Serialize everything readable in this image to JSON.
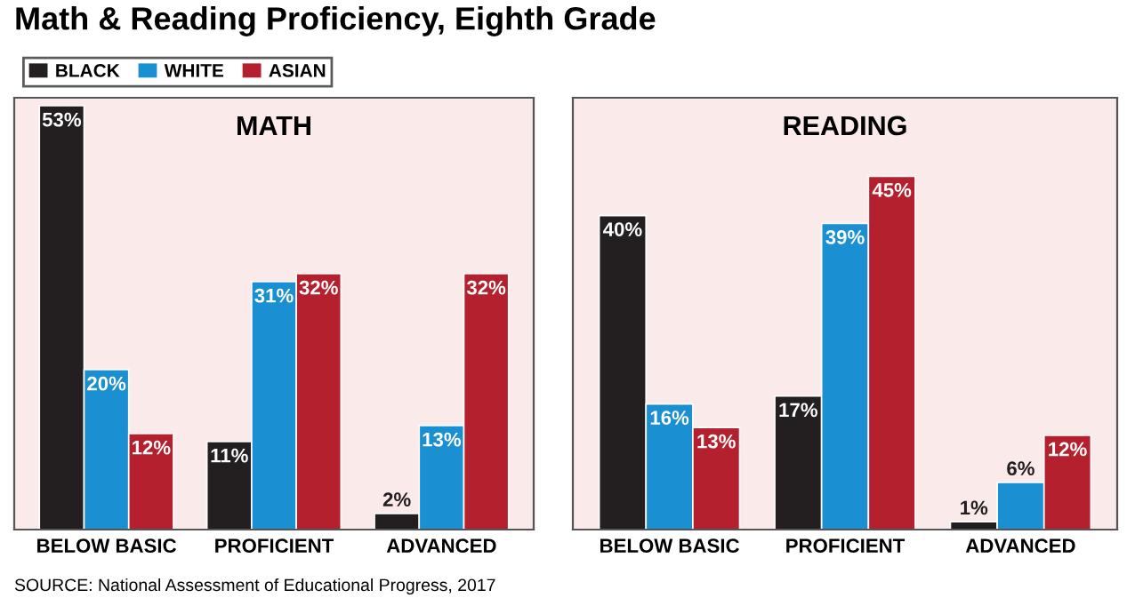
{
  "chart_data": [
    {
      "type": "bar",
      "title": "MATH",
      "subtitle": "Math & Reading Proficiency, Eighth Grade",
      "categories": [
        "BELOW BASIC",
        "PROFICIENT",
        "ADVANCED"
      ],
      "ylim": [
        0,
        54
      ],
      "legend": "top left",
      "grid": false,
      "tick_labels": "x",
      "series": [
        {
          "name": "BLACK",
          "color": "#231f20",
          "values": [
            53,
            11,
            2
          ],
          "value_labels": [
            "53%",
            "11%",
            "2%"
          ]
        },
        {
          "name": "WHITE",
          "color": "#1a8fd1",
          "values": [
            20,
            31,
            13
          ],
          "value_labels": [
            "20%",
            "31%",
            "13%"
          ]
        },
        {
          "name": "ASIAN",
          "color": "#b5202e",
          "values": [
            12,
            32,
            32
          ],
          "value_labels": [
            "12%",
            "32%",
            "32%"
          ]
        }
      ],
      "annotations": [
        "SOURCE: National Assessment of Educational Progress, 2017"
      ]
    },
    {
      "type": "bar",
      "title": "READING",
      "categories": [
        "BELOW BASIC",
        "PROFICIENT",
        "ADVANCED"
      ],
      "ylim": [
        0,
        55
      ],
      "legend": false,
      "grid": false,
      "tick_labels": "x",
      "series": [
        {
          "color": "#231f20",
          "values": [
            40,
            17,
            1
          ],
          "value_labels": [
            "40%",
            "17%",
            "1%"
          ]
        },
        {
          "color": "#1a8fd1",
          "values": [
            16,
            39,
            6
          ],
          "value_labels": [
            "16%",
            "39%",
            "6%"
          ]
        },
        {
          "color": "#b5202e",
          "values": [
            13,
            45,
            12
          ],
          "value_labels": [
            "13%",
            "45%",
            "12%"
          ]
        }
      ]
    }
  ]
}
